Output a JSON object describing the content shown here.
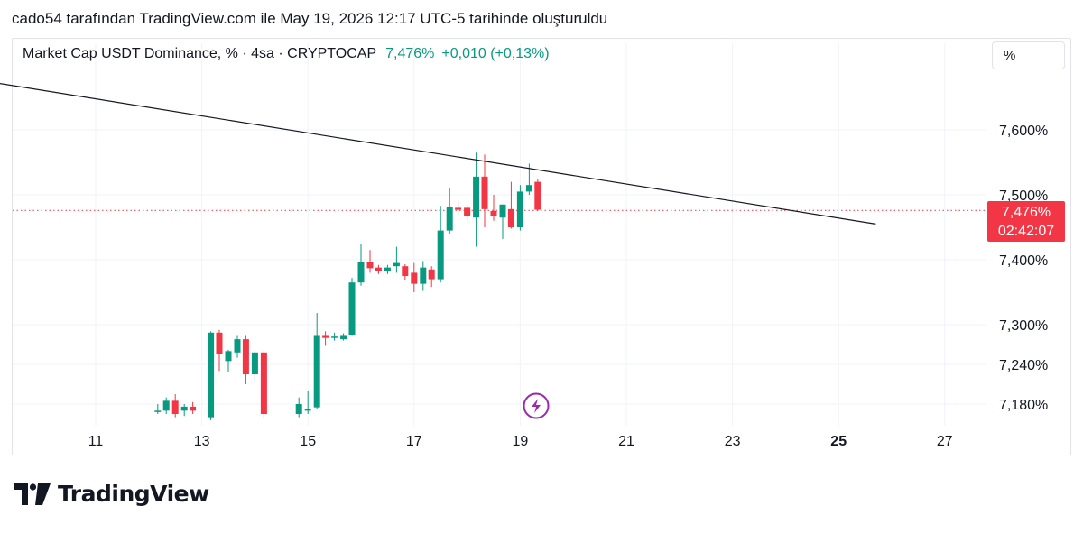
{
  "header": {
    "caption": "cado54 tarafından TradingView.com ile May 19, 2026 12:17 UTC-5 tarihinde oluşturuldu"
  },
  "legend": {
    "symbol": "Market Cap USDT Dominance, % · 4sa · CRYPTOCAP",
    "last_value": "7,476%",
    "change": "+0,010 (+0,13%)"
  },
  "scale_button": {
    "label": "%"
  },
  "price_tag": {
    "value": "7,476%",
    "countdown": "02:42:07"
  },
  "brand": {
    "name": "TradingView"
  },
  "colors": {
    "up": "#089981",
    "down": "#f23645",
    "grid": "#f0f3fa",
    "trendline": "#131722",
    "event_icon": "#9c27b0"
  },
  "chart_data": {
    "type": "candlestick",
    "y_tick_labels": [
      "7,600%",
      "7,500%",
      "7,400%",
      "7,300%",
      "7,240%",
      "7,180%"
    ],
    "y_ticks": [
      7.6,
      7.5,
      7.4,
      7.3,
      7.24,
      7.18
    ],
    "x_tick_labels": [
      "11",
      "13",
      "15",
      "17",
      "19",
      "21",
      "23",
      "25",
      "27"
    ],
    "x_ticks": [
      11,
      13,
      15,
      17,
      19,
      21,
      23,
      25,
      27
    ],
    "x_bold_label": "25",
    "last_price": 7.476,
    "trendline": {
      "start": [
        9.15,
        7.672
      ],
      "end": [
        25.7,
        7.455
      ]
    },
    "event_marker": {
      "x": 19.3,
      "icon": "lightning-icon"
    },
    "candles": [
      [
        12.17,
        7.168,
        7.18,
        7.165,
        7.17
      ],
      [
        12.33,
        7.17,
        7.19,
        7.165,
        7.185
      ],
      [
        12.5,
        7.185,
        7.195,
        7.16,
        7.165
      ],
      [
        12.67,
        7.17,
        7.18,
        7.162,
        7.176
      ],
      [
        12.83,
        7.176,
        7.183,
        7.165,
        7.17
      ],
      [
        13.17,
        7.16,
        7.29,
        7.155,
        7.288
      ],
      [
        13.33,
        7.288,
        7.292,
        7.23,
        7.255
      ],
      [
        13.5,
        7.245,
        7.262,
        7.228,
        7.26
      ],
      [
        13.67,
        7.258,
        7.283,
        7.25,
        7.278
      ],
      [
        13.83,
        7.278,
        7.283,
        7.21,
        7.225
      ],
      [
        14.0,
        7.225,
        7.26,
        7.215,
        7.258
      ],
      [
        14.17,
        7.258,
        7.26,
        7.16,
        7.165
      ],
      [
        14.83,
        7.165,
        7.19,
        7.16,
        7.18
      ],
      [
        15.0,
        7.17,
        7.2,
        7.165,
        7.172
      ],
      [
        15.17,
        7.175,
        7.318,
        7.172,
        7.283
      ],
      [
        15.33,
        7.283,
        7.29,
        7.268,
        7.28
      ],
      [
        15.5,
        7.28,
        7.288,
        7.276,
        7.282
      ],
      [
        15.67,
        7.278,
        7.287,
        7.276,
        7.283
      ],
      [
        15.83,
        7.285,
        7.372,
        7.283,
        7.365
      ],
      [
        16.0,
        7.365,
        7.425,
        7.36,
        7.397
      ],
      [
        16.17,
        7.397,
        7.415,
        7.38,
        7.387
      ],
      [
        16.33,
        7.388,
        7.392,
        7.378,
        7.382
      ],
      [
        16.5,
        7.383,
        7.392,
        7.378,
        7.388
      ],
      [
        16.67,
        7.39,
        7.42,
        7.38,
        7.395
      ],
      [
        16.83,
        7.39,
        7.393,
        7.368,
        7.375
      ],
      [
        17.0,
        7.38,
        7.395,
        7.35,
        7.363
      ],
      [
        17.17,
        7.363,
        7.398,
        7.352,
        7.388
      ],
      [
        17.33,
        7.385,
        7.39,
        7.358,
        7.37
      ],
      [
        17.5,
        7.37,
        7.483,
        7.365,
        7.445
      ],
      [
        17.67,
        7.445,
        7.51,
        7.44,
        7.482
      ],
      [
        17.83,
        7.48,
        7.49,
        7.47,
        7.477
      ],
      [
        18.0,
        7.48,
        7.485,
        7.46,
        7.468
      ],
      [
        18.17,
        7.465,
        7.565,
        7.42,
        7.528
      ],
      [
        18.33,
        7.528,
        7.562,
        7.45,
        7.478
      ],
      [
        18.5,
        7.475,
        7.5,
        7.46,
        7.468
      ],
      [
        18.67,
        7.465,
        7.485,
        7.432,
        7.485
      ],
      [
        18.83,
        7.478,
        7.52,
        7.448,
        7.45
      ],
      [
        19.0,
        7.45,
        7.515,
        7.445,
        7.505
      ],
      [
        19.17,
        7.505,
        7.548,
        7.5,
        7.515
      ],
      [
        19.33,
        7.52,
        7.525,
        7.475,
        7.477
      ]
    ]
  }
}
